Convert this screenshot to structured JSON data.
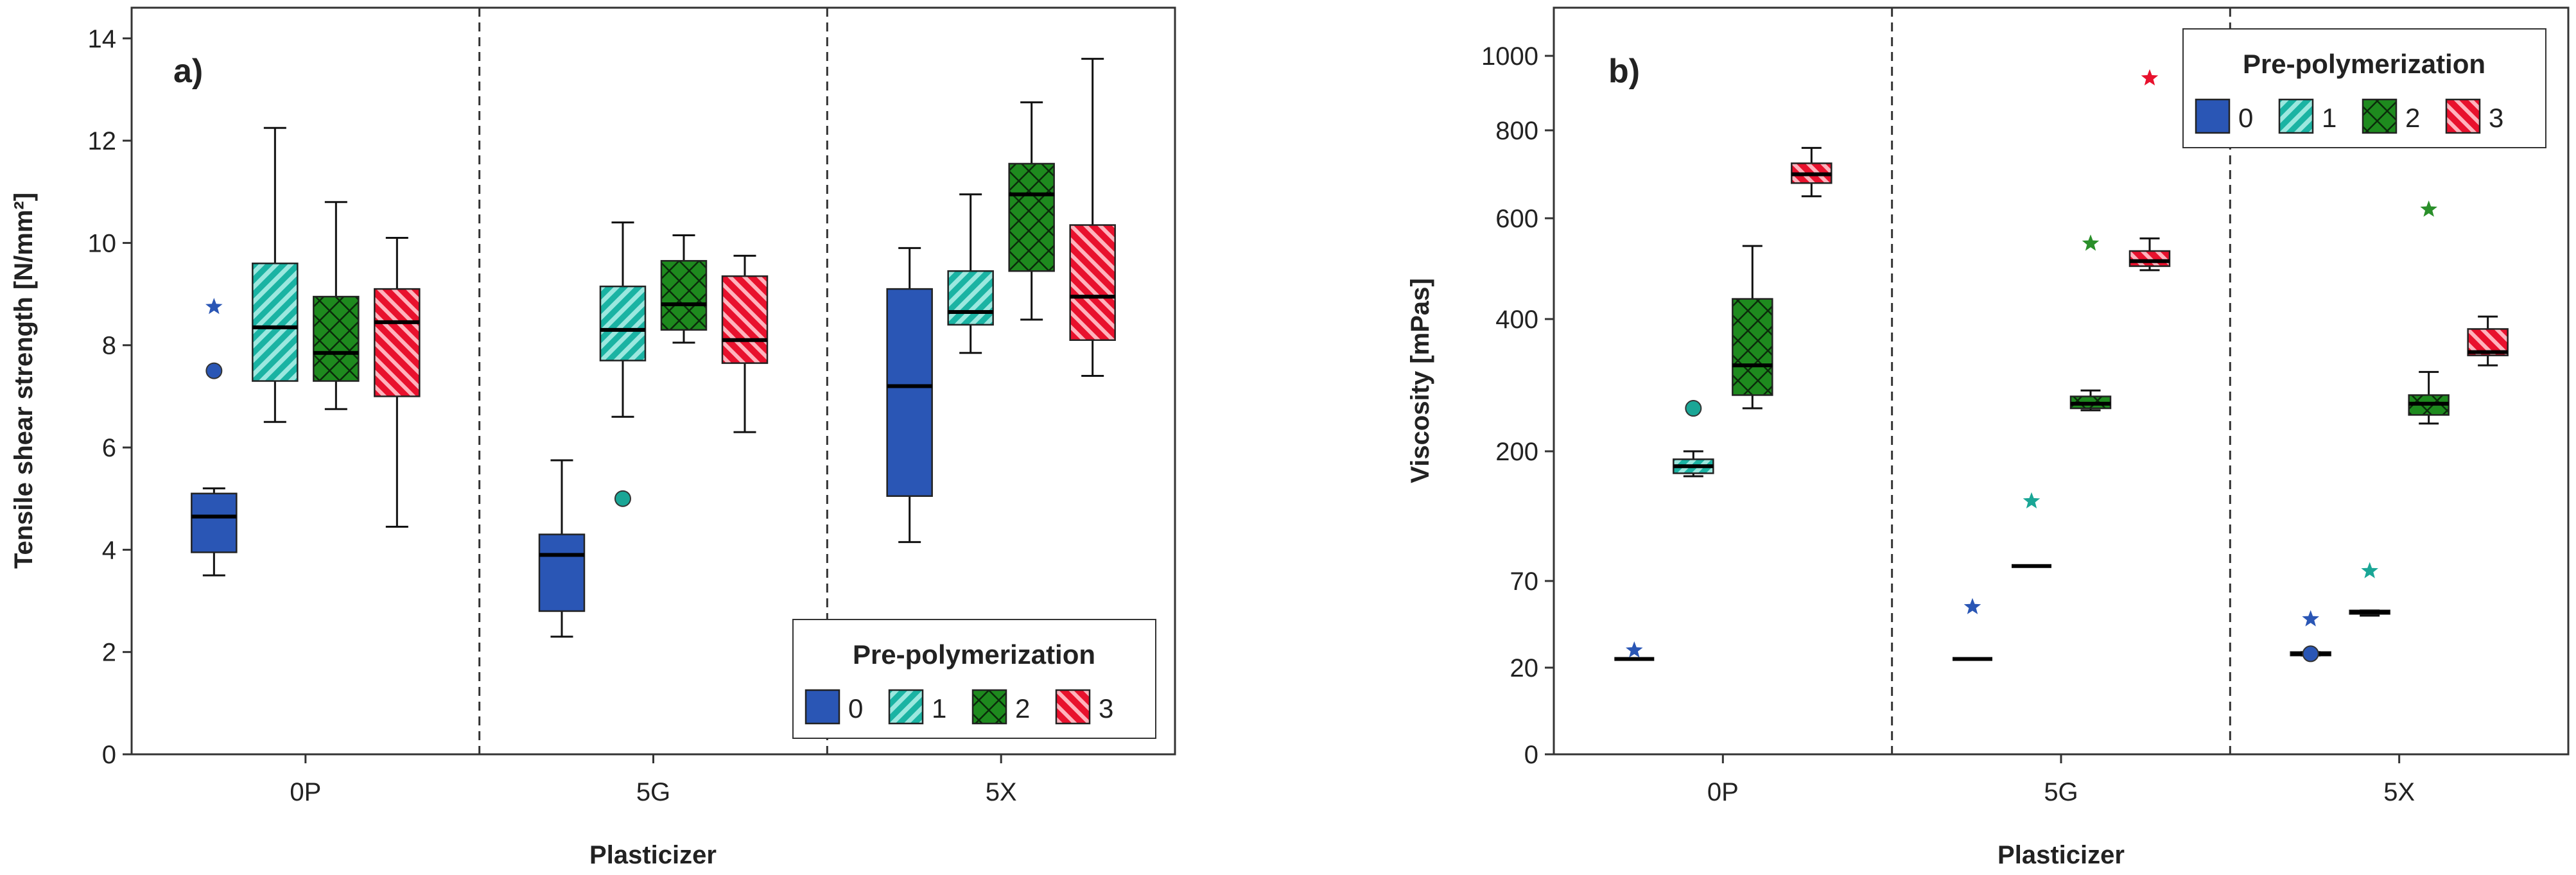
{
  "colors": {
    "g0": "#2a56b5",
    "g1": "#1ab3a3",
    "g2": "#1e8a1e",
    "g3": "#e8112d",
    "outlier0": "#2a56b5",
    "outlier1": "#1aa696",
    "outlier2": "#2a8f2a",
    "outlier3": "#e8112d",
    "text": "#222222",
    "axis": "#333333"
  },
  "icons": {
    "outlier_circle": "filled-circle-icon",
    "outlier_star": "star-icon"
  },
  "chart_data": [
    {
      "type": "box",
      "panel_label": "a)",
      "title": "",
      "xlabel": "Plasticizer",
      "ylabel": "Tensile shear strength [N/mm²]",
      "ylim": [
        0,
        14.6
      ],
      "yticks": [
        0,
        2,
        4,
        6,
        8,
        10,
        12,
        14
      ],
      "ytick_labels": [
        "0",
        "2",
        "4",
        "6",
        "8",
        "10",
        "12",
        "14"
      ],
      "categories": [
        "0P",
        "5G",
        "5X"
      ],
      "legend": {
        "title": "Pre-polymerization",
        "labels": [
          "0",
          "1",
          "2",
          "3"
        ],
        "position": "bottom-right"
      },
      "series": [
        {
          "name": "0",
          "boxes": [
            {
              "whislo": 3.5,
              "q1": 3.95,
              "med": 4.65,
              "q3": 5.1,
              "whishi": 5.2,
              "outliers": [
                {
                  "v": 7.5,
                  "m": "o"
                },
                {
                  "v": 8.75,
                  "m": "*"
                }
              ]
            },
            {
              "whislo": 2.3,
              "q1": 2.8,
              "med": 3.9,
              "q3": 4.3,
              "whishi": 5.75,
              "outliers": []
            },
            {
              "whislo": 4.15,
              "q1": 5.05,
              "med": 7.2,
              "q3": 9.1,
              "whishi": 9.9,
              "outliers": []
            }
          ]
        },
        {
          "name": "1",
          "boxes": [
            {
              "whislo": 6.5,
              "q1": 7.3,
              "med": 8.35,
              "q3": 9.6,
              "whishi": 12.25,
              "outliers": []
            },
            {
              "whislo": 6.6,
              "q1": 7.7,
              "med": 8.3,
              "q3": 9.15,
              "whishi": 10.4,
              "outliers": [
                {
                  "v": 5.0,
                  "m": "o"
                }
              ]
            },
            {
              "whislo": 7.85,
              "q1": 8.4,
              "med": 8.65,
              "q3": 9.45,
              "whishi": 10.95,
              "outliers": []
            }
          ]
        },
        {
          "name": "2",
          "boxes": [
            {
              "whislo": 6.75,
              "q1": 7.3,
              "med": 7.85,
              "q3": 8.95,
              "whishi": 10.8,
              "outliers": []
            },
            {
              "whislo": 8.05,
              "q1": 8.3,
              "med": 8.8,
              "q3": 9.65,
              "whishi": 10.15,
              "outliers": []
            },
            {
              "whislo": 8.5,
              "q1": 9.45,
              "med": 10.95,
              "q3": 11.55,
              "whishi": 12.75,
              "outliers": []
            }
          ]
        },
        {
          "name": "3",
          "boxes": [
            {
              "whislo": 4.45,
              "q1": 7.0,
              "med": 8.45,
              "q3": 9.1,
              "whishi": 10.1,
              "outliers": []
            },
            {
              "whislo": 6.3,
              "q1": 7.65,
              "med": 8.1,
              "q3": 9.35,
              "whishi": 9.75,
              "outliers": []
            },
            {
              "whislo": 7.4,
              "q1": 8.1,
              "med": 8.95,
              "q3": 10.35,
              "whishi": 13.6,
              "outliers": []
            }
          ]
        }
      ]
    },
    {
      "type": "box",
      "panel_label": "b)",
      "title": "",
      "xlabel": "Plasticizer",
      "ylabel": "Viscosity [mPas]",
      "yscale": "non-linear (tick positions as drawn)",
      "yticks": [
        0,
        20,
        70,
        200,
        400,
        600,
        800,
        1000
      ],
      "ytick_labels": [
        "0",
        "20",
        "70",
        "200",
        "400",
        "600",
        "800",
        "1000"
      ],
      "categories": [
        "0P",
        "5G",
        "5X"
      ],
      "legend": {
        "title": "Pre-polymerization",
        "labels": [
          "0",
          "1",
          "2",
          "3"
        ],
        "position": "top-right"
      },
      "series": [
        {
          "name": "0",
          "boxes": [
            {
              "whislo": 25,
              "q1": 25,
              "med": 25,
              "q3": 25,
              "whishi": 25,
              "outliers": [
                {
                  "v": 30,
                  "m": "*"
                }
              ]
            },
            {
              "whislo": 25,
              "q1": 25,
              "med": 25,
              "q3": 25,
              "whishi": 25,
              "outliers": [
                {
                  "v": 55,
                  "m": "*"
                }
              ]
            },
            {
              "whislo": 27,
              "q1": 27,
              "med": 28,
              "q3": 29,
              "whishi": 29,
              "outliers": [
                {
                  "v": 28,
                  "m": "o"
                },
                {
                  "v": 48,
                  "m": "*"
                }
              ]
            }
          ]
        },
        {
          "name": "1",
          "boxes": [
            {
              "whislo": 175,
              "q1": 178,
              "med": 185,
              "q3": 192,
              "whishi": 200,
              "outliers": [
                {
                  "v": 265,
                  "m": "o"
                }
              ]
            },
            {
              "whislo": 85,
              "q1": 85,
              "med": 85,
              "q3": 85,
              "whishi": 85,
              "outliers": [
                {
                  "v": 150,
                  "m": "*"
                }
              ]
            },
            {
              "whislo": 50,
              "q1": 51,
              "med": 52,
              "q3": 53,
              "whishi": 53,
              "outliers": [
                {
                  "v": 80,
                  "m": "*"
                }
              ]
            }
          ]
        },
        {
          "name": "2",
          "boxes": [
            {
              "whislo": 265,
              "q1": 285,
              "med": 330,
              "q3": 440,
              "whishi": 545,
              "outliers": []
            },
            {
              "whislo": 262,
              "q1": 265,
              "med": 272,
              "q3": 283,
              "whishi": 292,
              "outliers": [
                {
                  "v": 550,
                  "m": "*"
                }
              ]
            },
            {
              "whislo": 242,
              "q1": 255,
              "med": 272,
              "q3": 285,
              "whishi": 320,
              "outliers": [
                {
                  "v": 620,
                  "m": "*"
                }
              ]
            }
          ]
        },
        {
          "name": "3",
          "boxes": [
            {
              "whislo": 650,
              "q1": 680,
              "med": 700,
              "q3": 725,
              "whishi": 760,
              "outliers": []
            },
            {
              "whislo": 497,
              "q1": 505,
              "med": 515,
              "q3": 535,
              "whishi": 560,
              "outliers": [
                {
                  "v": 940,
                  "m": "*"
                }
              ]
            },
            {
              "whislo": 330,
              "q1": 345,
              "med": 350,
              "q3": 385,
              "whishi": 405,
              "outliers": []
            }
          ]
        }
      ]
    }
  ]
}
